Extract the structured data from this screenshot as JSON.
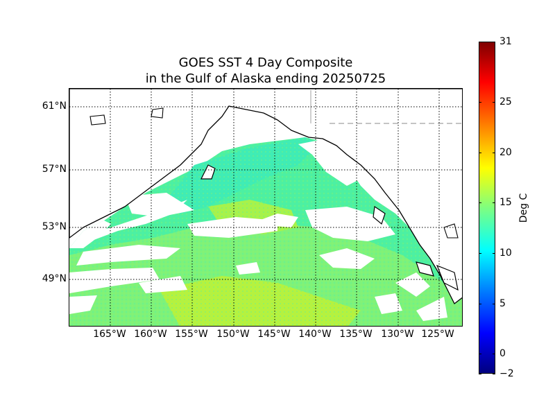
{
  "title": {
    "line1": "GOES SST 4 Day Composite",
    "line2": "in the Gulf of Alaska ending 20250725"
  },
  "map": {
    "latitude_labels": [
      "61°N",
      "57°N",
      "53°N",
      "49°N"
    ],
    "longitude_labels": [
      "165°W",
      "160°W",
      "155°W",
      "150°W",
      "145°W",
      "140°W",
      "135°W",
      "130°W",
      "125°W"
    ],
    "gridlines": "dotted",
    "land_color": "#ffffff",
    "cloud_mask_color": "#ffffff"
  },
  "colorbar": {
    "label": "Deg C",
    "ticks": [
      "31",
      "25",
      "20",
      "15",
      "10",
      "5",
      "0",
      "−2"
    ],
    "range": [
      -2,
      31
    ],
    "colormap": "jet"
  }
}
